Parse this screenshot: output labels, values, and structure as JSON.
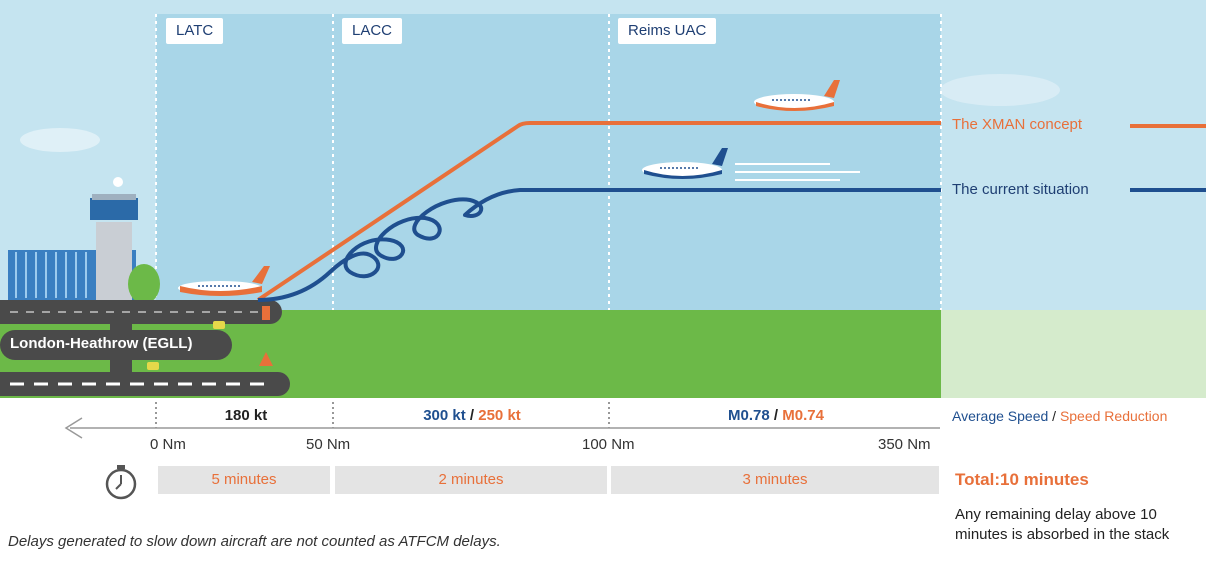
{
  "sectors": [
    {
      "label": "LATC"
    },
    {
      "label": "LACC"
    },
    {
      "label": "Reims UAC"
    }
  ],
  "legend": {
    "xman": "The XMAN concept",
    "current": "The current situation"
  },
  "airport": {
    "label": "London-Heathrow (EGLL)"
  },
  "speeds": {
    "latc": "180 kt",
    "lacc_avg": "300 kt",
    "lacc_sep": " / ",
    "lacc_red": "250 kt",
    "reims_avg": "M0.78",
    "reims_sep": " / ",
    "reims_red": "M0.74",
    "legend_avg": "Average Speed",
    "legend_sep": " / ",
    "legend_red": "Speed Reduction"
  },
  "distances": [
    "0 Nm",
    "50 Nm",
    "100 Nm",
    "350 Nm"
  ],
  "times": [
    "5 minutes",
    "2 minutes",
    "3 minutes"
  ],
  "total": "Total:10 minutes",
  "note": "Any remaining delay above 10 minutes is absorbed in the stack",
  "footnote": "Delays generated to slow down aircraft are not counted as ATFCM delays.",
  "colors": {
    "sky": "#bfe1ee",
    "zone": "#a9d8e8",
    "grass": "#6cb948",
    "runway": "#4a4a4a",
    "xman_line": "#e8703a",
    "current_line": "#1f4f8f"
  }
}
